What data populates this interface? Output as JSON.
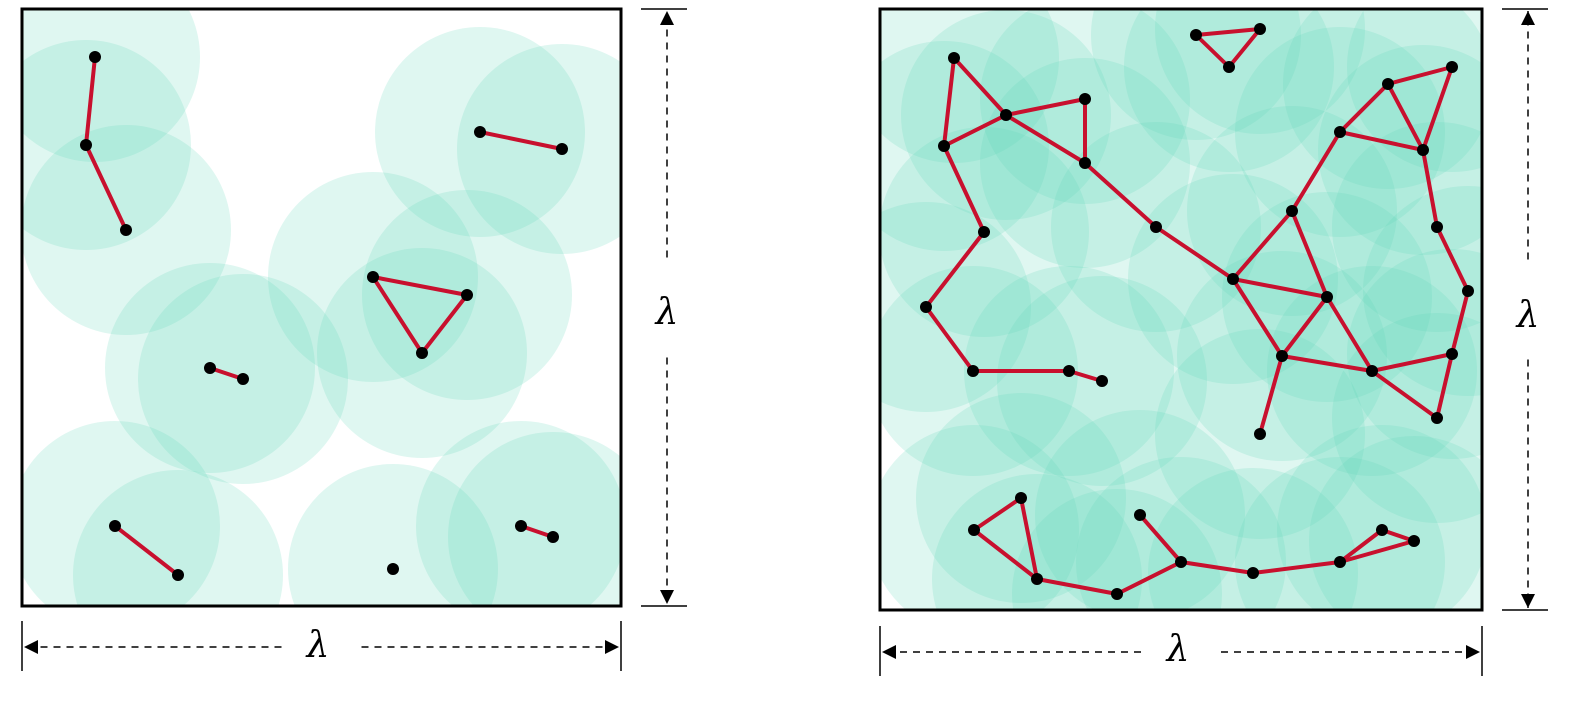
{
  "panels": [
    {
      "width_label": "λ",
      "height_label": "λ"
    },
    {
      "width_label": "λ",
      "height_label": "λ"
    }
  ]
}
